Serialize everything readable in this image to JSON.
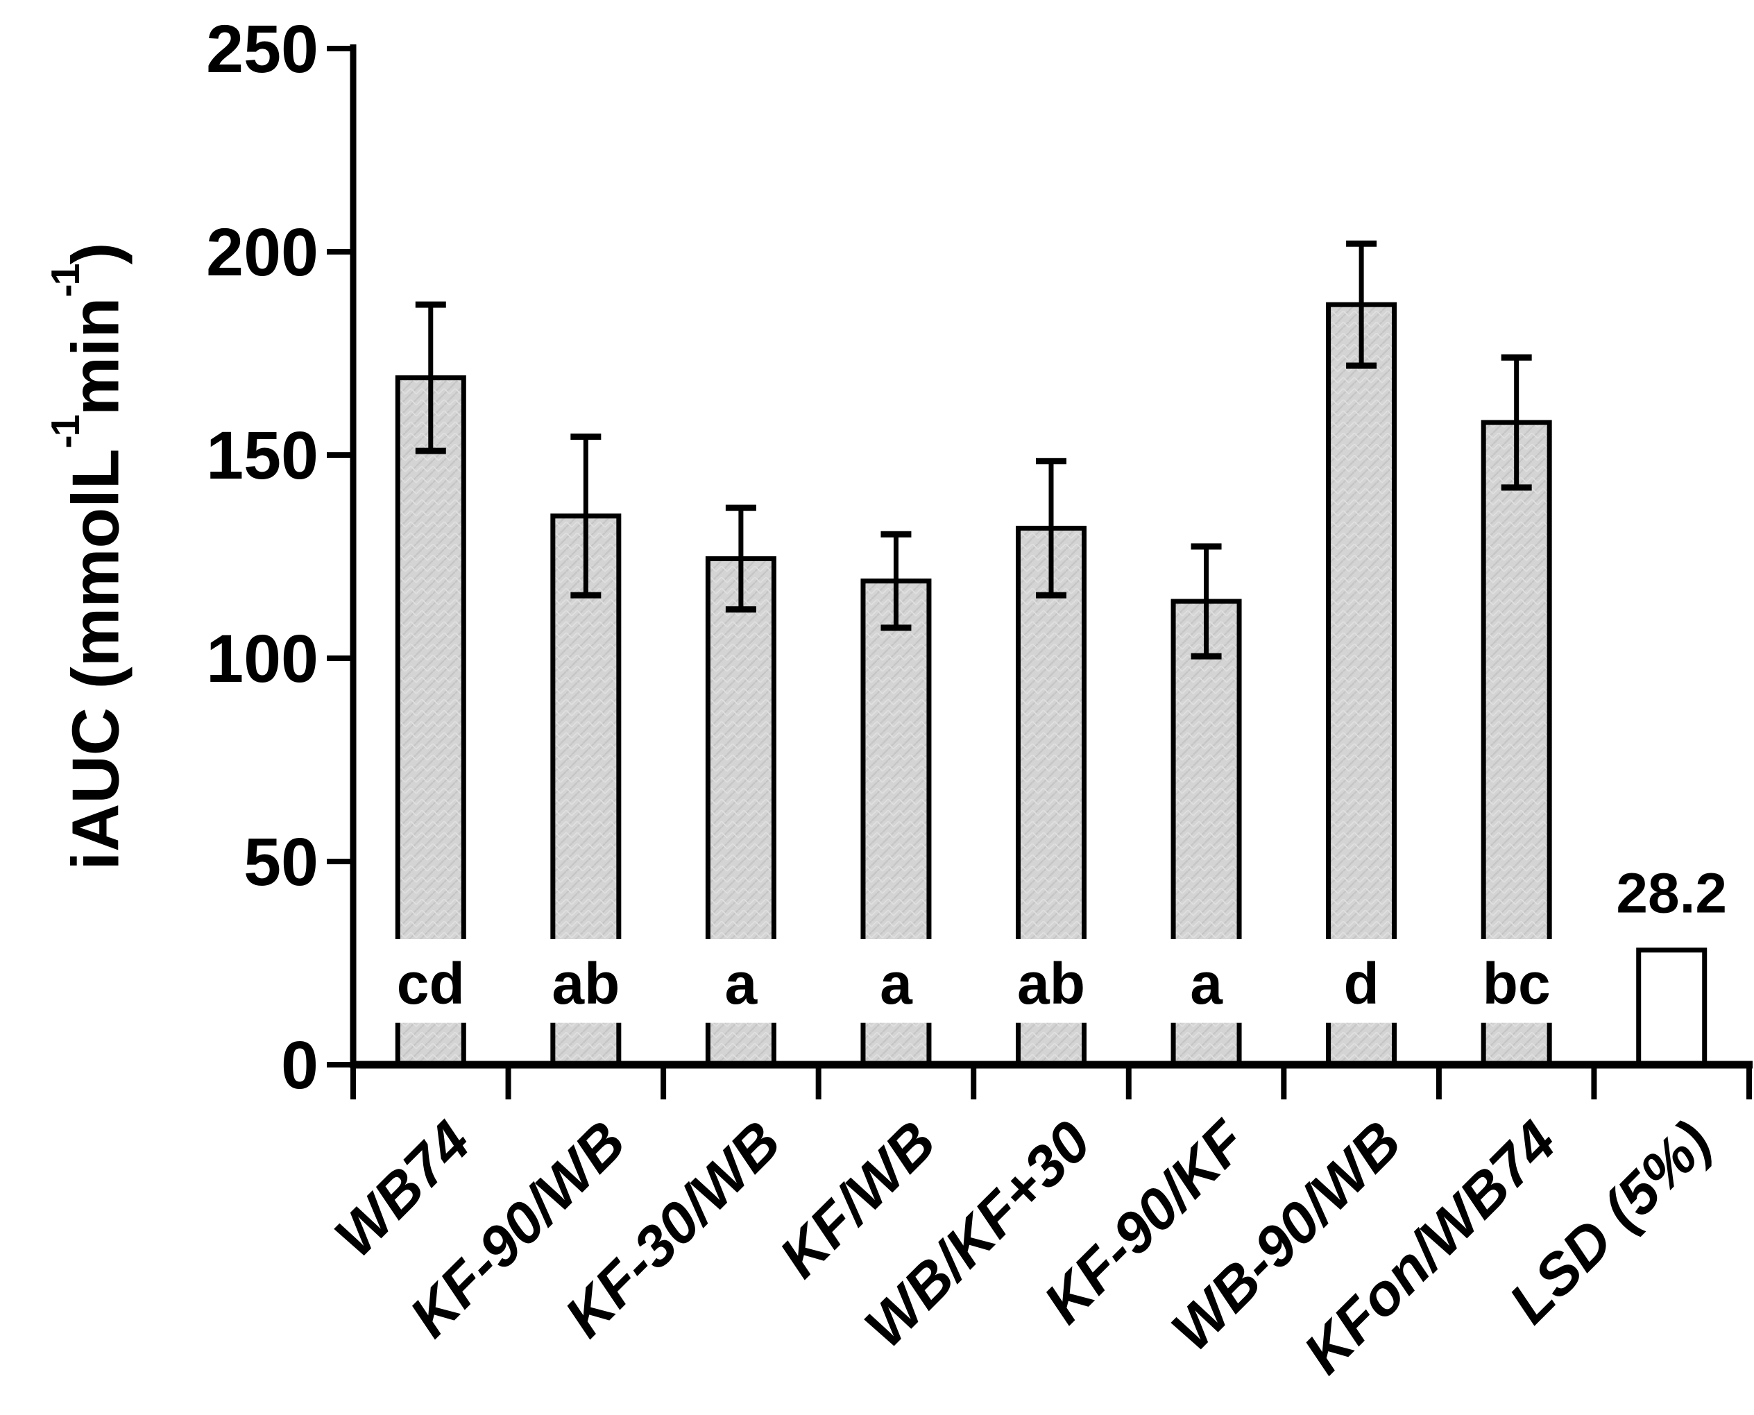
{
  "figure": {
    "background": "#ffffff",
    "y_axis_title_parts": {
      "p0": "iAUC (mmolL",
      "sup0": "-1",
      "p1": "min",
      "sup1": "-1",
      "p2": ")"
    }
  },
  "colors": {
    "bar_fill": "#d4d4d4",
    "bar_hatch": "#c6c6c6",
    "bar_hatch_light": "#e0e0e0",
    "open_bar_fill": "#ffffff",
    "outline": "#000000",
    "axis": "#000000",
    "text": "#000000",
    "background": "#ffffff"
  },
  "chart_data": {
    "type": "bar",
    "title": "",
    "xlabel": "",
    "ylabel": "iAUC (mmolL-1min-1)",
    "ylabel_parts": [
      "iAUC (mmolL",
      "-1",
      "min",
      "-1",
      ")"
    ],
    "categories": [
      "WB74",
      "KF-90/WB",
      "KF-30/WB",
      "KF/WB",
      "WB/KF+30",
      "KF-90/KF",
      "WB-90/WB",
      "KFon/WB74",
      "LSD (5%)"
    ],
    "values": [
      169,
      135,
      124.5,
      119,
      132,
      114,
      187,
      158,
      28.2
    ],
    "errors": [
      18,
      19.5,
      12.5,
      11.5,
      16.5,
      13.5,
      15,
      16,
      null
    ],
    "significance_letters": [
      "cd",
      "ab",
      "a",
      "a",
      "ab",
      "a",
      "d",
      "bc",
      null
    ],
    "value_labels": [
      null,
      null,
      null,
      null,
      null,
      null,
      null,
      null,
      "28.2"
    ],
    "bar_styles": [
      "hatched",
      "hatched",
      "hatched",
      "hatched",
      "hatched",
      "hatched",
      "hatched",
      "hatched",
      "open"
    ],
    "ylim": [
      0,
      250
    ],
    "yticks": [
      0,
      50,
      100,
      150,
      200,
      250
    ],
    "grid": false,
    "legend": null
  }
}
